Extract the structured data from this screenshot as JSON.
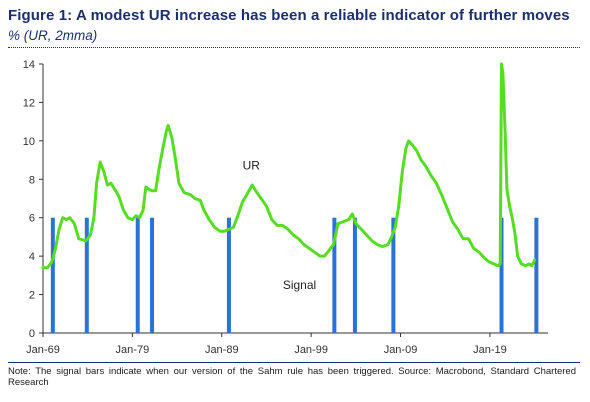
{
  "title": "Figure 1: A modest UR increase has been a reliable indicator of further moves",
  "subtitle": "% (UR, 2mma)",
  "note": "Note:  The signal bars indicate when our version of the Sahm rule has been triggered. Source: Macrobond, Standard Chartered Research",
  "colors": {
    "ur_line": "#55dd22",
    "signal_bar": "#2a72d8",
    "title": "#1b2f6e"
  },
  "chart_data": {
    "type": "line",
    "title": "Figure 1: A modest UR increase has been a reliable indicator of further moves",
    "ylabel": "% (UR, 2mma)",
    "xlabel": "",
    "xlim": [
      1969.0,
      2025.5
    ],
    "ylim": [
      0,
      14
    ],
    "yticks": [
      0,
      2,
      4,
      6,
      8,
      10,
      12,
      14
    ],
    "xticks": [
      {
        "value": 1969.0,
        "label": "Jan-69"
      },
      {
        "value": 1979.0,
        "label": "Jan-79"
      },
      {
        "value": 1989.0,
        "label": "Jan-89"
      },
      {
        "value": 1999.0,
        "label": "Jan-99"
      },
      {
        "value": 2009.0,
        "label": "Jan-09"
      },
      {
        "value": 2019.0,
        "label": "Jan-19"
      }
    ],
    "grid": false,
    "annotations": [
      {
        "text": "UR",
        "x": 1992.3,
        "y": 8.5
      },
      {
        "text": "Signal",
        "x": 1997.7,
        "y": 2.3
      }
    ],
    "series": [
      {
        "name": "UR",
        "type": "line",
        "points": [
          [
            1969.0,
            3.4
          ],
          [
            1969.5,
            3.4
          ],
          [
            1970.0,
            3.7
          ],
          [
            1970.4,
            4.4
          ],
          [
            1970.8,
            5.4
          ],
          [
            1971.2,
            6.0
          ],
          [
            1971.6,
            5.9
          ],
          [
            1972.0,
            6.0
          ],
          [
            1972.5,
            5.7
          ],
          [
            1973.0,
            4.9
          ],
          [
            1973.8,
            4.8
          ],
          [
            1974.3,
            5.1
          ],
          [
            1974.7,
            6.0
          ],
          [
            1975.0,
            7.8
          ],
          [
            1975.4,
            8.9
          ],
          [
            1975.8,
            8.4
          ],
          [
            1976.2,
            7.7
          ],
          [
            1976.6,
            7.8
          ],
          [
            1977.0,
            7.5
          ],
          [
            1977.5,
            7.1
          ],
          [
            1978.0,
            6.4
          ],
          [
            1978.5,
            6.0
          ],
          [
            1979.0,
            5.9
          ],
          [
            1979.4,
            6.1
          ],
          [
            1979.8,
            6.0
          ],
          [
            1980.2,
            6.4
          ],
          [
            1980.5,
            7.6
          ],
          [
            1980.8,
            7.5
          ],
          [
            1981.2,
            7.4
          ],
          [
            1981.6,
            7.4
          ],
          [
            1982.0,
            8.6
          ],
          [
            1982.4,
            9.6
          ],
          [
            1982.8,
            10.5
          ],
          [
            1983.0,
            10.8
          ],
          [
            1983.4,
            10.2
          ],
          [
            1983.8,
            9.1
          ],
          [
            1984.2,
            7.8
          ],
          [
            1984.8,
            7.3
          ],
          [
            1985.5,
            7.2
          ],
          [
            1986.0,
            7.0
          ],
          [
            1986.6,
            6.9
          ],
          [
            1987.0,
            6.4
          ],
          [
            1987.6,
            5.9
          ],
          [
            1988.2,
            5.5
          ],
          [
            1988.8,
            5.3
          ],
          [
            1989.3,
            5.3
          ],
          [
            1989.8,
            5.4
          ],
          [
            1990.3,
            5.5
          ],
          [
            1990.8,
            6.1
          ],
          [
            1991.3,
            6.8
          ],
          [
            1991.8,
            7.2
          ],
          [
            1992.4,
            7.7
          ],
          [
            1992.8,
            7.4
          ],
          [
            1993.4,
            7.0
          ],
          [
            1994.0,
            6.6
          ],
          [
            1994.6,
            5.9
          ],
          [
            1995.2,
            5.6
          ],
          [
            1995.8,
            5.6
          ],
          [
            1996.4,
            5.4
          ],
          [
            1997.0,
            5.1
          ],
          [
            1997.6,
            4.9
          ],
          [
            1998.2,
            4.6
          ],
          [
            1998.8,
            4.4
          ],
          [
            1999.4,
            4.2
          ],
          [
            2000.0,
            4.0
          ],
          [
            2000.5,
            4.0
          ],
          [
            2001.0,
            4.3
          ],
          [
            2001.5,
            4.6
          ],
          [
            2002.0,
            5.7
          ],
          [
            2002.6,
            5.8
          ],
          [
            2003.2,
            5.9
          ],
          [
            2003.6,
            6.2
          ],
          [
            2004.0,
            5.7
          ],
          [
            2004.6,
            5.4
          ],
          [
            2005.2,
            5.1
          ],
          [
            2005.8,
            4.8
          ],
          [
            2006.4,
            4.6
          ],
          [
            2007.0,
            4.5
          ],
          [
            2007.6,
            4.6
          ],
          [
            2008.0,
            5.0
          ],
          [
            2008.4,
            5.5
          ],
          [
            2008.8,
            6.6
          ],
          [
            2009.2,
            8.4
          ],
          [
            2009.6,
            9.6
          ],
          [
            2009.9,
            10.0
          ],
          [
            2010.3,
            9.8
          ],
          [
            2010.8,
            9.5
          ],
          [
            2011.3,
            9.0
          ],
          [
            2011.8,
            8.7
          ],
          [
            2012.4,
            8.2
          ],
          [
            2013.0,
            7.8
          ],
          [
            2013.6,
            7.2
          ],
          [
            2014.2,
            6.5
          ],
          [
            2014.8,
            5.8
          ],
          [
            2015.4,
            5.4
          ],
          [
            2016.0,
            4.9
          ],
          [
            2016.6,
            4.9
          ],
          [
            2017.2,
            4.4
          ],
          [
            2017.8,
            4.2
          ],
          [
            2018.4,
            3.9
          ],
          [
            2018.9,
            3.7
          ],
          [
            2019.4,
            3.6
          ],
          [
            2019.9,
            3.5
          ],
          [
            2020.15,
            3.6
          ],
          [
            2020.3,
            14.0
          ],
          [
            2020.45,
            13.5
          ],
          [
            2020.7,
            10.5
          ],
          [
            2020.9,
            7.5
          ],
          [
            2021.2,
            6.6
          ],
          [
            2021.5,
            6.0
          ],
          [
            2021.8,
            5.2
          ],
          [
            2022.1,
            4.0
          ],
          [
            2022.5,
            3.6
          ],
          [
            2023.0,
            3.5
          ],
          [
            2023.4,
            3.6
          ],
          [
            2023.7,
            3.5
          ],
          [
            2024.0,
            3.8
          ]
        ]
      },
      {
        "name": "Signal",
        "type": "bar",
        "x": [
          1970.1,
          1973.9,
          1979.6,
          1981.2,
          1989.8,
          2001.6,
          2003.9,
          2008.2,
          2020.3,
          2024.2
        ],
        "values": [
          6,
          6,
          6,
          6,
          6,
          6,
          6,
          6,
          6,
          6
        ]
      }
    ]
  }
}
